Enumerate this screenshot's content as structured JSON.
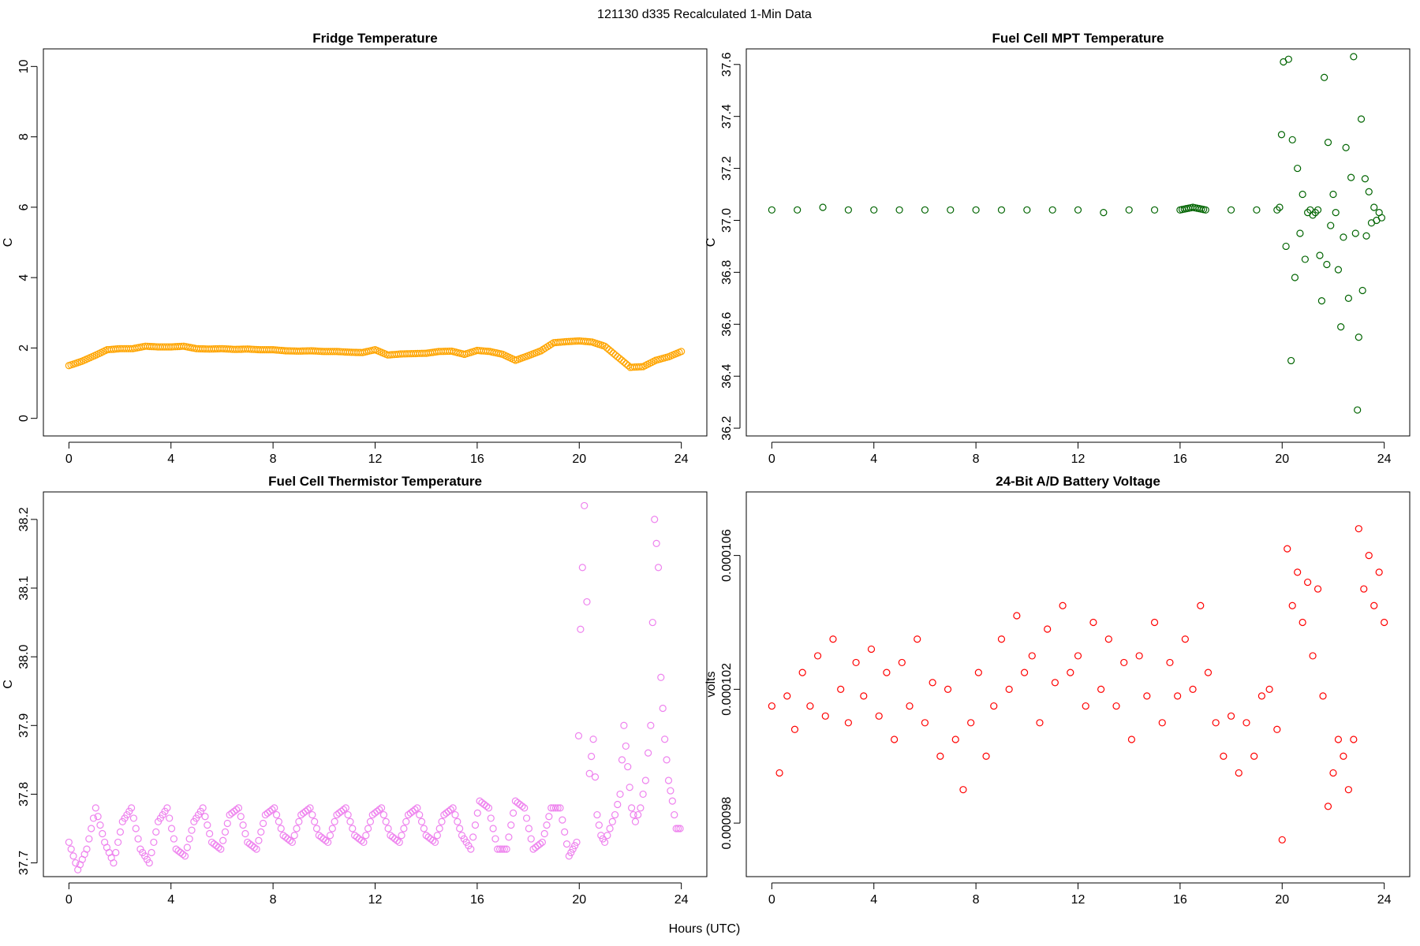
{
  "figure": {
    "title": "121130   d335   Recalculated 1-Min Data",
    "xlabel": "Hours (UTC)"
  },
  "chart_data": [
    {
      "id": "fridge",
      "type": "scatter",
      "title": "Fridge Temperature",
      "xlabel": "",
      "ylabel": "C",
      "color": "#FFA500",
      "xlim": [
        -1,
        25
      ],
      "ylim": [
        -0.5,
        10.5
      ],
      "xticks": [
        0,
        4,
        8,
        12,
        16,
        20,
        24
      ],
      "yticks": [
        0,
        2,
        4,
        6,
        8,
        10
      ],
      "yticklabels": [
        "0",
        "2",
        "4",
        "6",
        "8",
        "10"
      ],
      "dense": true,
      "series": [
        {
          "name": "Fridge Temperature",
          "x": [
            0,
            0.5,
            1,
            1.5,
            2,
            2.5,
            3,
            3.5,
            4,
            4.5,
            5,
            5.5,
            6,
            6.5,
            7,
            7.5,
            8,
            8.5,
            9,
            9.5,
            10,
            10.5,
            11,
            11.5,
            12,
            12.5,
            13,
            13.5,
            14,
            14.5,
            15,
            15.5,
            16,
            16.5,
            17,
            17.5,
            18,
            18.5,
            19,
            19.5,
            20,
            20.5,
            21,
            21.5,
            22,
            22.5,
            23,
            23.5,
            24
          ],
          "y": [
            1.5,
            1.62,
            1.78,
            1.95,
            1.98,
            1.98,
            2.05,
            2.03,
            2.03,
            2.05,
            1.98,
            1.97,
            1.98,
            1.96,
            1.97,
            1.95,
            1.95,
            1.92,
            1.91,
            1.92,
            1.9,
            1.9,
            1.88,
            1.87,
            1.95,
            1.8,
            1.83,
            1.84,
            1.85,
            1.9,
            1.91,
            1.82,
            1.93,
            1.9,
            1.82,
            1.65,
            1.78,
            1.92,
            2.15,
            2.18,
            2.2,
            2.17,
            2.05,
            1.75,
            1.45,
            1.47,
            1.65,
            1.75,
            1.9
          ]
        }
      ]
    },
    {
      "id": "mpt",
      "type": "scatter",
      "title": "Fuel Cell MPT Temperature",
      "xlabel": "",
      "ylabel": "C",
      "color": "#006400",
      "xlim": [
        -1,
        25
      ],
      "ylim": [
        36.17,
        37.66
      ],
      "xticks": [
        0,
        4,
        8,
        12,
        16,
        20,
        24
      ],
      "yticks": [
        36.2,
        36.4,
        36.6,
        36.8,
        37.0,
        37.2,
        37.4,
        37.6
      ],
      "yticklabels": [
        "36.2",
        "36.4",
        "36.6",
        "36.8",
        "37.0",
        "37.2",
        "37.4",
        "37.6"
      ],
      "dense": true,
      "series": [
        {
          "name": "Fuel Cell MPT Temperature",
          "x": [
            0,
            1,
            2,
            3,
            4,
            5,
            6,
            7,
            8,
            9,
            10,
            11,
            12,
            13,
            14,
            15,
            16,
            16.5,
            17,
            18,
            19,
            19.8,
            19.9,
            20.05,
            20.15,
            20.25,
            20.35,
            20.4,
            20.5,
            20.6,
            20.7,
            20.8,
            20.9,
            21.0,
            21.1,
            21.2,
            21.3,
            21.4,
            21.55,
            21.65,
            21.75,
            21.8,
            21.9,
            22.0,
            22.1,
            22.3,
            22.5,
            22.6,
            22.8,
            22.95,
            23.0,
            23.1,
            23.15,
            23.25,
            23.3,
            23.4,
            23.5,
            23.6,
            23.7,
            23.8,
            23.9
          ],
          "y": [
            37.04,
            37.04,
            37.05,
            37.04,
            37.04,
            37.04,
            37.04,
            37.04,
            37.04,
            37.04,
            37.04,
            37.04,
            37.04,
            37.03,
            37.04,
            37.04,
            37.04,
            37.05,
            37.04,
            37.04,
            37.04,
            37.04,
            37.05,
            37.61,
            36.9,
            37.62,
            36.46,
            37.31,
            36.78,
            37.2,
            36.95,
            37.1,
            36.85,
            37.03,
            37.04,
            37.02,
            37.03,
            37.04,
            36.69,
            37.55,
            36.83,
            37.3,
            36.98,
            37.1,
            37.03,
            36.59,
            37.28,
            36.7,
            37.63,
            36.27,
            36.55,
            37.39,
            36.73,
            37.16,
            36.94,
            37.11,
            36.99,
            37.05,
            37.0,
            37.03,
            37.01
          ]
        }
      ]
    },
    {
      "id": "thermistor",
      "type": "scatter",
      "title": "Fuel Cell Thermistor Temperature",
      "xlabel": "",
      "ylabel": "C",
      "color": "#EE82EE",
      "xlim": [
        -1,
        25
      ],
      "ylim": [
        37.68,
        38.24
      ],
      "xticks": [
        0,
        4,
        8,
        12,
        16,
        20,
        24
      ],
      "yticks": [
        37.7,
        37.8,
        37.9,
        38.0,
        38.1,
        38.2
      ],
      "yticklabels": [
        "37.7",
        "37.8",
        "37.9",
        "38.0",
        "38.1",
        "38.2"
      ],
      "dense": true,
      "series": [
        {
          "name": "Fuel Cell Thermistor Temperature",
          "x": [
            0,
            0.35,
            0.7,
            1.05,
            1.4,
            1.75,
            2.1,
            2.45,
            2.8,
            3.15,
            3.5,
            3.85,
            4.2,
            4.55,
            4.9,
            5.25,
            5.6,
            5.95,
            6.3,
            6.65,
            7.0,
            7.35,
            7.7,
            8.05,
            8.4,
            8.75,
            9.1,
            9.45,
            9.8,
            10.15,
            10.5,
            10.85,
            11.2,
            11.55,
            11.9,
            12.25,
            12.6,
            12.95,
            13.3,
            13.65,
            14.0,
            14.35,
            14.7,
            15.05,
            15.4,
            15.75,
            16.1,
            16.45,
            16.8,
            17.15,
            17.5,
            17.85,
            18.2,
            18.55,
            18.9,
            19.25,
            19.6,
            19.9,
            20.05,
            20.2,
            20.3,
            20.4,
            20.55,
            20.7,
            20.85,
            21.0,
            21.2,
            21.4,
            21.6,
            21.75,
            21.9,
            22.05,
            22.2,
            22.4,
            22.6,
            22.8,
            22.95,
            23.1,
            23.2,
            23.35,
            23.5,
            23.65,
            23.8,
            23.95
          ],
          "y": [
            37.73,
            37.69,
            37.72,
            37.78,
            37.73,
            37.7,
            37.76,
            37.78,
            37.72,
            37.7,
            37.76,
            37.78,
            37.72,
            37.71,
            37.76,
            37.78,
            37.73,
            37.72,
            37.77,
            37.78,
            37.73,
            37.72,
            37.77,
            37.78,
            37.74,
            37.73,
            37.77,
            37.78,
            37.74,
            37.73,
            37.77,
            37.78,
            37.74,
            37.73,
            37.77,
            37.78,
            37.74,
            37.73,
            37.77,
            37.78,
            37.74,
            37.73,
            37.77,
            37.78,
            37.74,
            37.72,
            37.79,
            37.78,
            37.72,
            37.72,
            37.79,
            37.78,
            37.72,
            37.73,
            37.78,
            37.78,
            37.71,
            37.73,
            38.04,
            38.22,
            38.08,
            37.83,
            37.88,
            37.77,
            37.74,
            37.73,
            37.75,
            37.77,
            37.8,
            37.9,
            37.84,
            37.78,
            37.76,
            37.78,
            37.82,
            37.9,
            38.2,
            38.13,
            37.97,
            37.88,
            37.82,
            37.79,
            37.75,
            37.75
          ]
        }
      ]
    },
    {
      "id": "battery",
      "type": "scatter",
      "title": "24-Bit A/D Battery Voltage",
      "xlabel": "",
      "ylabel": "volts",
      "color": "#FF0000",
      "xlim": [
        -1,
        25
      ],
      "ylim": [
        9.64e-05,
        0.0001079
      ],
      "xticks": [
        0,
        4,
        8,
        12,
        16,
        20,
        24
      ],
      "yticks": [
        9.8e-05,
        0.000102,
        0.000106
      ],
      "yticklabels": [
        "0.000098",
        "0.000102",
        "0.000106"
      ],
      "dense": false,
      "series": [
        {
          "name": "24-Bit A/D Battery Voltage",
          "x": [
            0,
            0.3,
            0.6,
            0.9,
            1.2,
            1.5,
            1.8,
            2.1,
            2.4,
            2.7,
            3.0,
            3.3,
            3.6,
            3.9,
            4.2,
            4.5,
            4.8,
            5.1,
            5.4,
            5.7,
            6.0,
            6.3,
            6.6,
            6.9,
            7.2,
            7.5,
            7.8,
            8.1,
            8.4,
            8.7,
            9.0,
            9.3,
            9.6,
            9.9,
            10.2,
            10.5,
            10.8,
            11.1,
            11.4,
            11.7,
            12.0,
            12.3,
            12.6,
            12.9,
            13.2,
            13.5,
            13.8,
            14.1,
            14.4,
            14.7,
            15.0,
            15.3,
            15.6,
            15.9,
            16.2,
            16.5,
            16.8,
            17.1,
            17.4,
            17.7,
            18.0,
            18.3,
            18.6,
            18.9,
            19.2,
            19.5,
            19.8,
            20.0,
            20.2,
            20.4,
            20.6,
            20.8,
            21.0,
            21.2,
            21.4,
            21.6,
            21.8,
            22.0,
            22.2,
            22.4,
            22.6,
            22.8,
            23.0,
            23.2,
            23.4,
            23.6,
            23.8,
            24.0
          ],
          "y": [
            0.0001015,
            9.95e-05,
            0.0001018,
            0.0001008,
            0.0001025,
            0.0001015,
            0.000103,
            0.0001012,
            0.0001035,
            0.000102,
            0.000101,
            0.0001028,
            0.0001018,
            0.0001032,
            0.0001012,
            0.0001025,
            0.0001005,
            0.0001028,
            0.0001015,
            0.0001035,
            0.000101,
            0.0001022,
            0.0001,
            0.000102,
            0.0001005,
            9.9e-05,
            0.000101,
            0.0001025,
            0.0001,
            0.0001015,
            0.0001035,
            0.000102,
            0.0001042,
            0.0001025,
            0.000103,
            0.000101,
            0.0001038,
            0.0001022,
            0.0001045,
            0.0001025,
            0.000103,
            0.0001015,
            0.000104,
            0.000102,
            0.0001035,
            0.0001015,
            0.0001028,
            0.0001005,
            0.000103,
            0.0001018,
            0.000104,
            0.000101,
            0.0001028,
            0.0001018,
            0.0001035,
            0.000102,
            0.0001045,
            0.0001025,
            0.000101,
            0.0001,
            0.0001012,
            9.95e-05,
            0.000101,
            0.0001,
            0.0001018,
            0.000102,
            0.0001008,
            9.75e-05,
            0.0001062,
            0.0001045,
            0.0001055,
            0.000104,
            0.0001052,
            0.000103,
            0.000105,
            0.0001018,
            9.85e-05,
            9.95e-05,
            0.0001005,
            0.0001,
            9.9e-05,
            0.0001005,
            0.0001068,
            0.000105,
            0.000106,
            0.0001045,
            0.0001055,
            0.000104
          ]
        }
      ]
    }
  ]
}
